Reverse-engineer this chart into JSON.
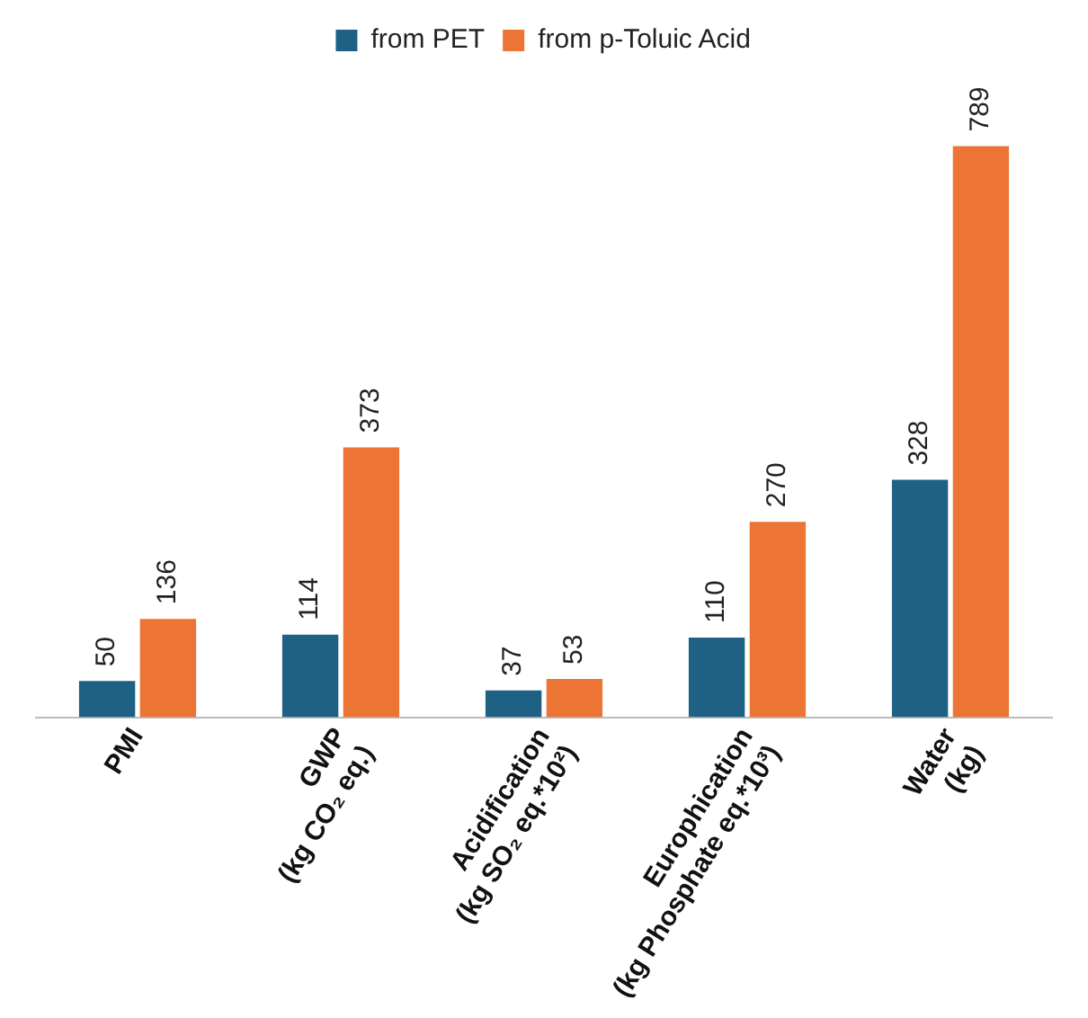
{
  "chart_data": {
    "type": "bar",
    "categories": [
      "PMI",
      "GWP\n(kg CO₂ eq.)",
      "Acidification\n(kg SO₂ eq.*10²)",
      "Europhication\n(kg Phosphate eq.*10³)",
      "Water\n(kg)"
    ],
    "series": [
      {
        "name": "from PET",
        "color": "#1f6185",
        "values": [
          50,
          114,
          37,
          110,
          328
        ]
      },
      {
        "name": "from p-Toluic Acid",
        "color": "#ec7535",
        "values": [
          136,
          373,
          53,
          270,
          789
        ]
      }
    ],
    "data_labels": true,
    "legend": "top",
    "grid": false
  }
}
